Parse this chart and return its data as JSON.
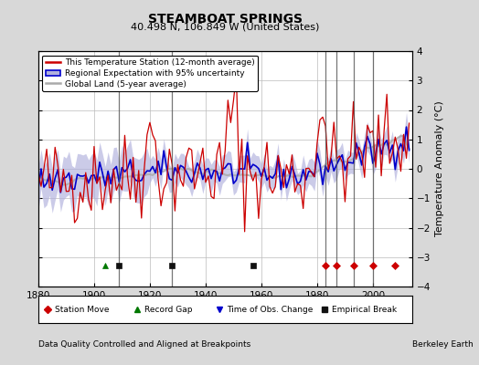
{
  "title": "STEAMBOAT SPRINGS",
  "subtitle": "40.498 N, 106.849 W (United States)",
  "ylabel": "Temperature Anomaly (°C)",
  "xlabel_bottom": "Data Quality Controlled and Aligned at Breakpoints",
  "xlabel_right": "Berkeley Earth",
  "ylim": [
    -4,
    4
  ],
  "xlim": [
    1880,
    2014
  ],
  "xticks": [
    1880,
    1900,
    1920,
    1940,
    1960,
    1980,
    2000
  ],
  "yticks": [
    -4,
    -3,
    -2,
    -1,
    0,
    1,
    2,
    3,
    4
  ],
  "bg_color": "#d8d8d8",
  "plot_bg_color": "#ffffff",
  "grid_color": "#bbbbbb",
  "red_line_color": "#cc0000",
  "blue_line_color": "#0000cc",
  "blue_fill_color": "#b0b0dd",
  "gray_line_color": "#aaaaaa",
  "vertical_line_color": "#555555",
  "vertical_lines": [
    1909,
    1928,
    1983,
    1987,
    1993,
    2000
  ],
  "station_move_years": [
    1983,
    1987,
    1993,
    2000,
    2008
  ],
  "record_gap_years": [
    1904
  ],
  "obs_change_years": [],
  "empirical_break_years": [
    1909,
    1928,
    1957
  ],
  "seed": 42,
  "n_years": 134,
  "start_year": 1880
}
